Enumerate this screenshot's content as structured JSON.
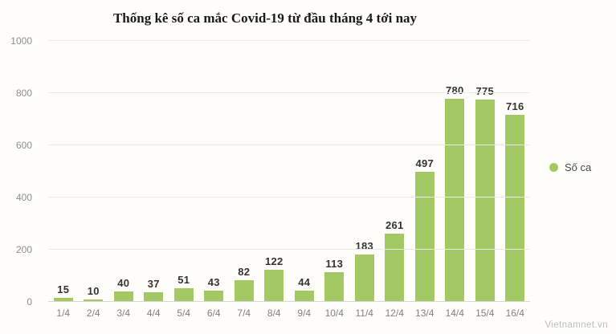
{
  "title": "Thống kê số ca mắc Covid-19 từ đầu tháng 4 tới nay",
  "legend": {
    "label": "Số ca"
  },
  "watermark": "Vietnamnet.vn",
  "colors": {
    "bar": "#a2c964",
    "grid": "#e9e9e9",
    "axis_text": "#8f8f8f",
    "value_label": "#333333"
  },
  "chart_data": {
    "type": "bar",
    "title": "Thống kê số ca mắc Covid-19 từ đầu tháng 4 tới nay",
    "categories": [
      "1/4",
      "2/4",
      "3/4",
      "4/4",
      "5/4",
      "6/4",
      "7/4",
      "8/4",
      "9/4",
      "10/4",
      "11/4",
      "12/4",
      "13/4",
      "14/4",
      "15/4",
      "16/4"
    ],
    "values": [
      15,
      10,
      40,
      37,
      51,
      43,
      82,
      122,
      44,
      113,
      183,
      261,
      497,
      780,
      775,
      716
    ],
    "series_name": "Số ca",
    "xlabel": "",
    "ylabel": "",
    "ylim": [
      0,
      1000
    ],
    "yticks": [
      0,
      200,
      400,
      600,
      800,
      1000
    ],
    "grid": true,
    "legend_position": "right"
  }
}
